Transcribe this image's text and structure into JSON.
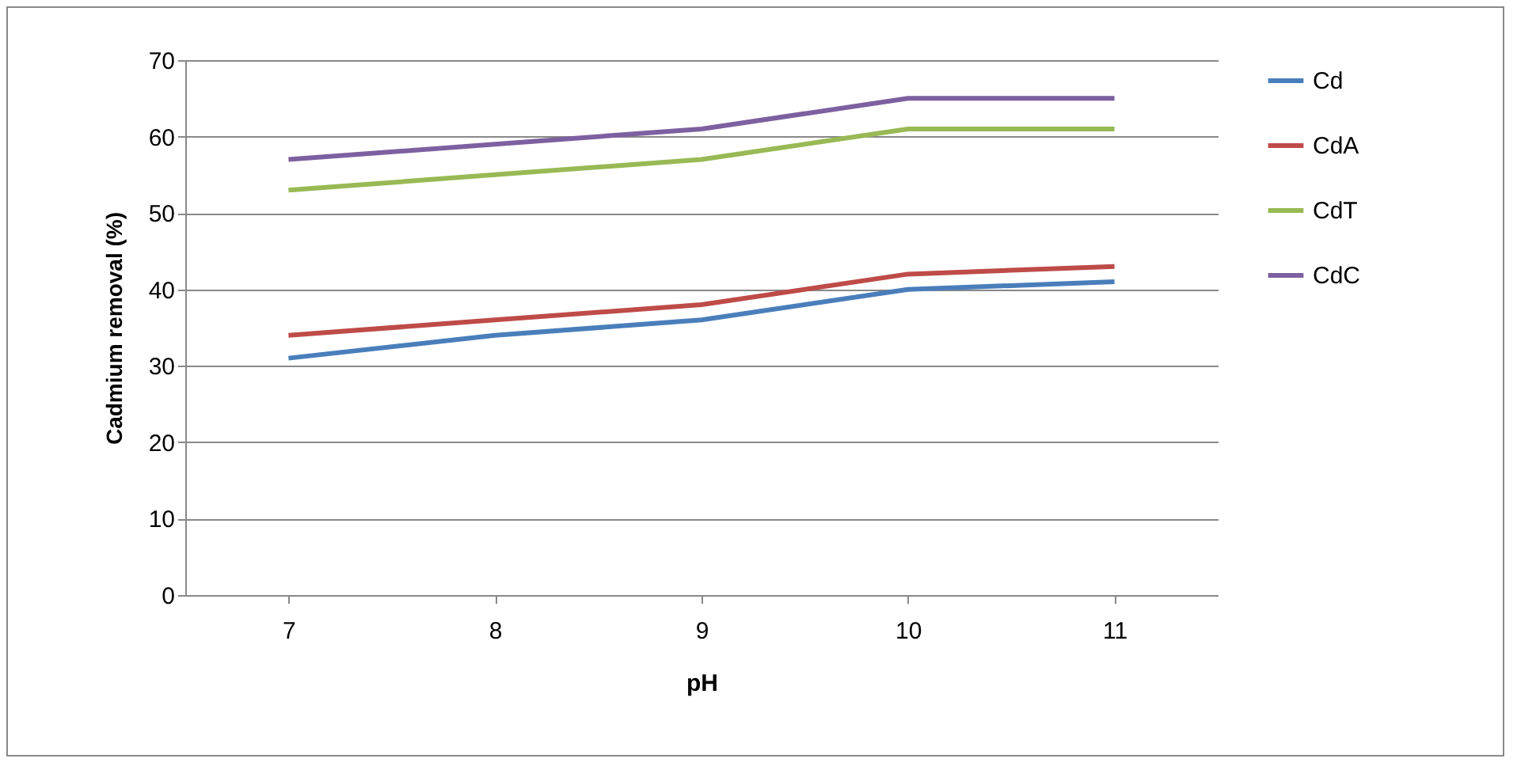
{
  "chart_data": {
    "type": "line",
    "xlabel": "pH",
    "ylabel": "Cadmium removal (%)",
    "categories": [
      "7",
      "8",
      "9",
      "10",
      "11"
    ],
    "series": [
      {
        "name": "Cd",
        "color": "#4a7ebb",
        "values": [
          31,
          34,
          36,
          40,
          41
        ]
      },
      {
        "name": "CdA",
        "color": "#be4b48",
        "values": [
          34,
          36,
          38,
          42,
          43
        ]
      },
      {
        "name": "CdT",
        "color": "#98b954",
        "values": [
          53,
          55,
          57,
          61,
          61
        ]
      },
      {
        "name": "CdC",
        "color": "#7d60a0",
        "values": [
          57,
          59,
          61,
          65,
          65
        ]
      }
    ],
    "ylim": [
      0,
      70
    ],
    "yticks": [
      0,
      10,
      20,
      30,
      40,
      50,
      60,
      70
    ],
    "grid": "y",
    "legend": "right",
    "marker": "none",
    "line_style": "solid"
  }
}
